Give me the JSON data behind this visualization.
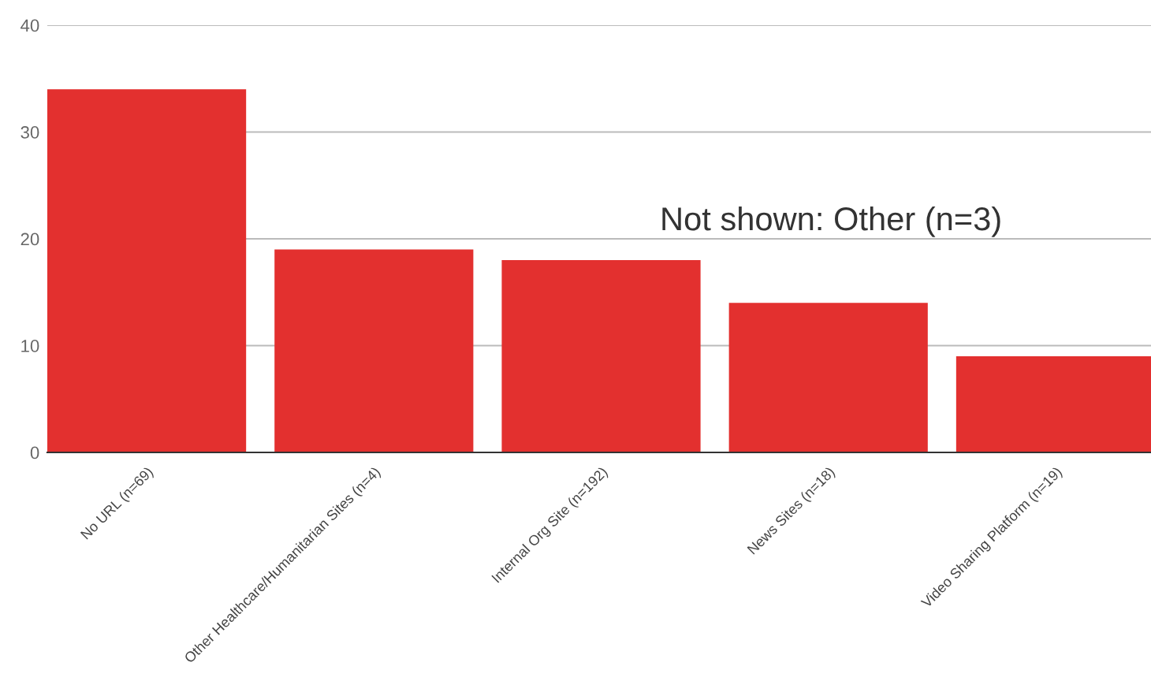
{
  "chart_data": {
    "type": "bar",
    "categories": [
      "No URL (n=69)",
      "Other Healthcare/Humanitarian Sites (n=4)",
      "Internal Org Site (n=192)",
      "News Sites (n=18)",
      "Video Sharing Platform (n=19)"
    ],
    "values": [
      34,
      19,
      18,
      14,
      9
    ],
    "color": "#e3302f",
    "ylim": [
      0,
      40
    ],
    "yticks": [
      0,
      10,
      20,
      30,
      40
    ],
    "grid": "y",
    "annotations": [
      "Not shown: Other (n=3)"
    ]
  }
}
